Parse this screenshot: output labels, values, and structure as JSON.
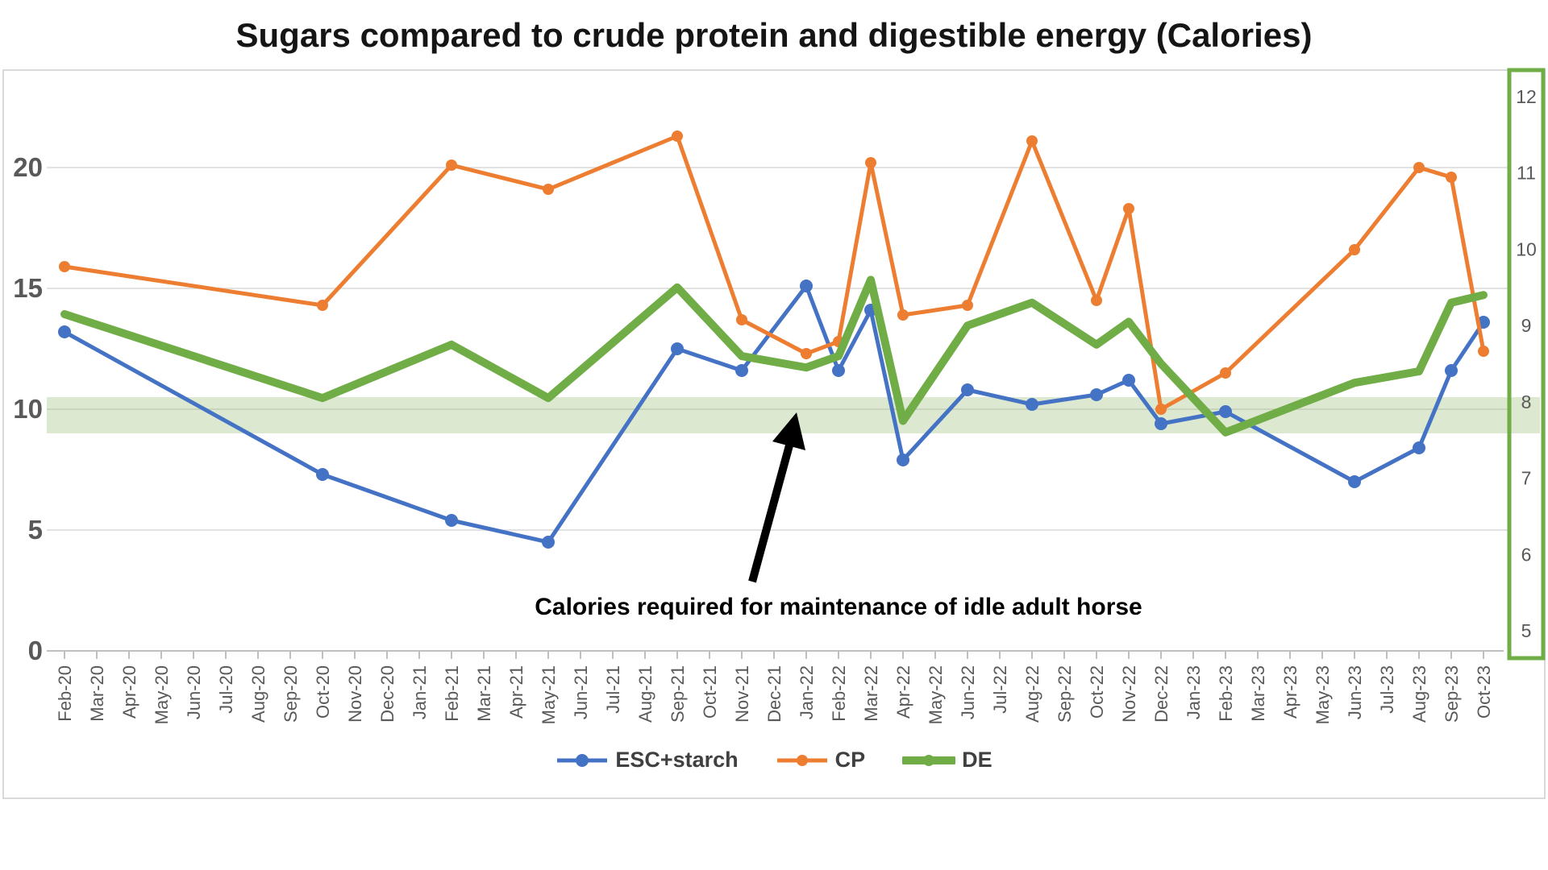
{
  "title": "Sugars compared to crude protein and digestible energy (Calories)",
  "annotation": {
    "text": "Calories required for maintenance of idle adult horse"
  },
  "legend": [
    {
      "label": "ESC+starch",
      "color": "#4472C4"
    },
    {
      "label": "CP",
      "color": "#ED7D31"
    },
    {
      "label": "DE",
      "color": "#70AD47"
    }
  ],
  "colors": {
    "esc_starch": "#4472C4",
    "cp": "#ED7D31",
    "de": "#70AD47",
    "band_fill": "#DCE8D0",
    "gridline": "#D9D9D9",
    "gridline_in_band": "#C2CDB6",
    "axis_line": "#BFBFBF",
    "axis_text": "#595959",
    "chart_border": "#D9D9D9",
    "right_axis_box_border": "#70AD47",
    "annotation_arrow": "#000000"
  },
  "chart_data": {
    "type": "line",
    "title": "Sugars compared to crude protein and digestible energy (Calories)",
    "xlabel": "",
    "ylabel": "",
    "grid": true,
    "legend_position": "bottom",
    "x_all_months": [
      "Feb-20",
      "Mar-20",
      "Apr-20",
      "May-20",
      "Jun-20",
      "Jul-20",
      "Aug-20",
      "Sep-20",
      "Oct-20",
      "Nov-20",
      "Dec-20",
      "Jan-21",
      "Feb-21",
      "Mar-21",
      "Apr-21",
      "May-21",
      "Jun-21",
      "Jul-21",
      "Aug-21",
      "Sep-21",
      "Oct-21",
      "Nov-21",
      "Dec-21",
      "Jan-22",
      "Feb-22",
      "Mar-22",
      "Apr-22",
      "May-22",
      "Jun-22",
      "Jul-22",
      "Aug-22",
      "Sep-22",
      "Oct-22",
      "Nov-22",
      "Dec-22",
      "Jan-23",
      "Feb-23",
      "Mar-23",
      "Apr-23",
      "May-23",
      "Jun-23",
      "Jul-23",
      "Aug-23",
      "Sep-23",
      "Oct-23"
    ],
    "categories": [
      "Feb-20",
      "Oct-20",
      "Feb-21",
      "May-21",
      "Sep-21",
      "Nov-21",
      "Jan-22",
      "Feb-22",
      "Mar-22",
      "Apr-22",
      "Jun-22",
      "Aug-22",
      "Oct-22",
      "Nov-22",
      "Dec-22",
      "Feb-23",
      "Jun-23",
      "Aug-23",
      "Sep-23",
      "Oct-23"
    ],
    "category_month_index": [
      0,
      8,
      12,
      15,
      19,
      21,
      23,
      24,
      25,
      26,
      28,
      30,
      32,
      33,
      34,
      36,
      40,
      42,
      43,
      44
    ],
    "series": [
      {
        "name": "ESC+starch",
        "axis": "left",
        "color": "#4472C4",
        "marker": true,
        "line_width": 5,
        "values": [
          13.2,
          7.3,
          5.4,
          4.5,
          12.5,
          11.6,
          15.1,
          11.6,
          14.1,
          7.9,
          10.8,
          10.2,
          10.6,
          11.2,
          9.4,
          9.9,
          7.0,
          8.4,
          11.6,
          13.6
        ]
      },
      {
        "name": "CP",
        "axis": "left",
        "color": "#ED7D31",
        "marker": true,
        "line_width": 5,
        "values": [
          15.9,
          14.3,
          20.1,
          19.1,
          21.3,
          13.7,
          12.3,
          12.8,
          20.2,
          13.9,
          14.3,
          21.1,
          14.5,
          18.3,
          10.0,
          11.5,
          16.6,
          20.0,
          19.6,
          12.4
        ]
      },
      {
        "name": "DE",
        "axis": "right",
        "color": "#70AD47",
        "marker": false,
        "line_width": 10,
        "values": [
          9.15,
          8.05,
          8.75,
          8.05,
          9.5,
          8.6,
          8.45,
          8.6,
          9.6,
          7.75,
          9.0,
          9.3,
          8.75,
          9.05,
          8.5,
          7.6,
          8.25,
          8.4,
          9.3,
          9.4
        ]
      }
    ],
    "left_axis": {
      "ticks": [
        0,
        5,
        10,
        15,
        20
      ],
      "grid_ticks": [
        5,
        10,
        15,
        20
      ],
      "range": [
        0,
        24
      ]
    },
    "right_axis": {
      "ticks": [
        5,
        6,
        7,
        8,
        9,
        10,
        11,
        12
      ],
      "range": [
        5,
        12.35
      ]
    },
    "band": {
      "axis": "left",
      "from": 9.0,
      "to": 10.5,
      "label": "Calories required for maintenance of idle adult horse"
    }
  }
}
